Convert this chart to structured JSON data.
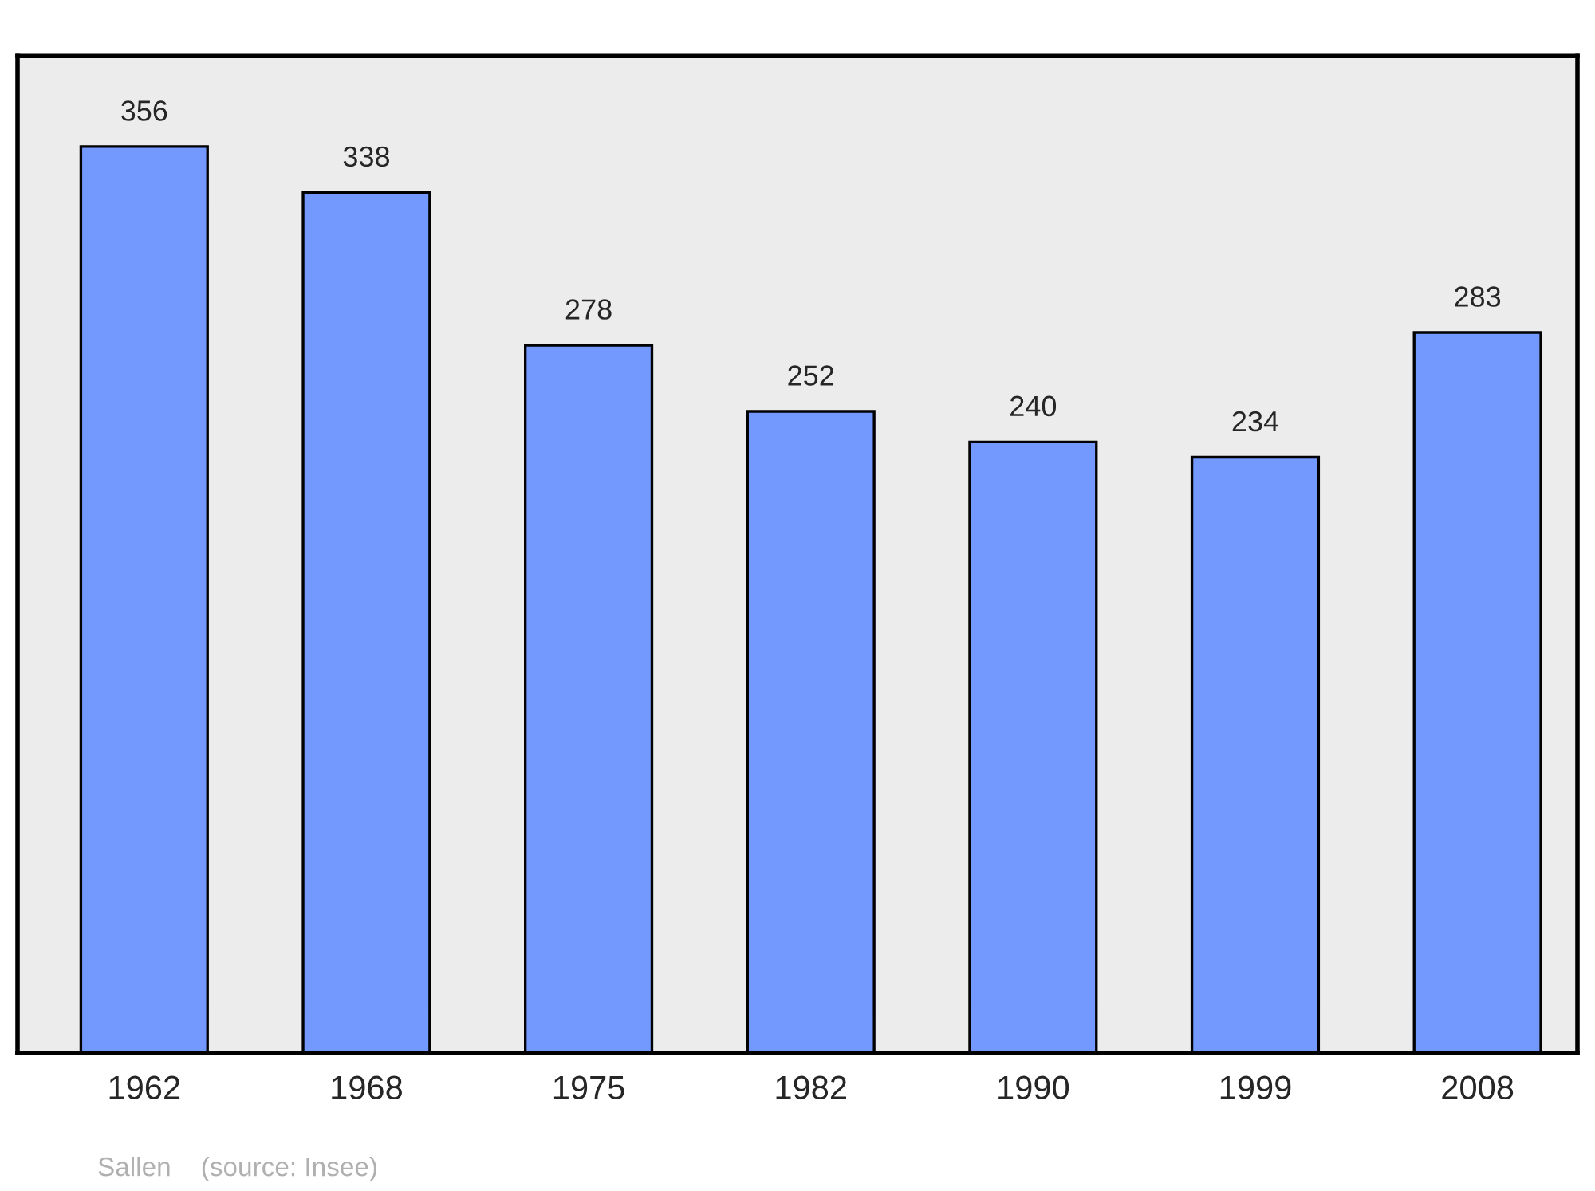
{
  "chart_data": {
    "type": "bar",
    "categories": [
      "1962",
      "1968",
      "1975",
      "1982",
      "1990",
      "1999",
      "2008"
    ],
    "values": [
      356,
      338,
      278,
      252,
      240,
      234,
      283
    ],
    "color": "#7399ff",
    "data_labels": true,
    "grid": false,
    "legend": false,
    "annotations": [
      "Sallen    (source: Insee)"
    ]
  }
}
